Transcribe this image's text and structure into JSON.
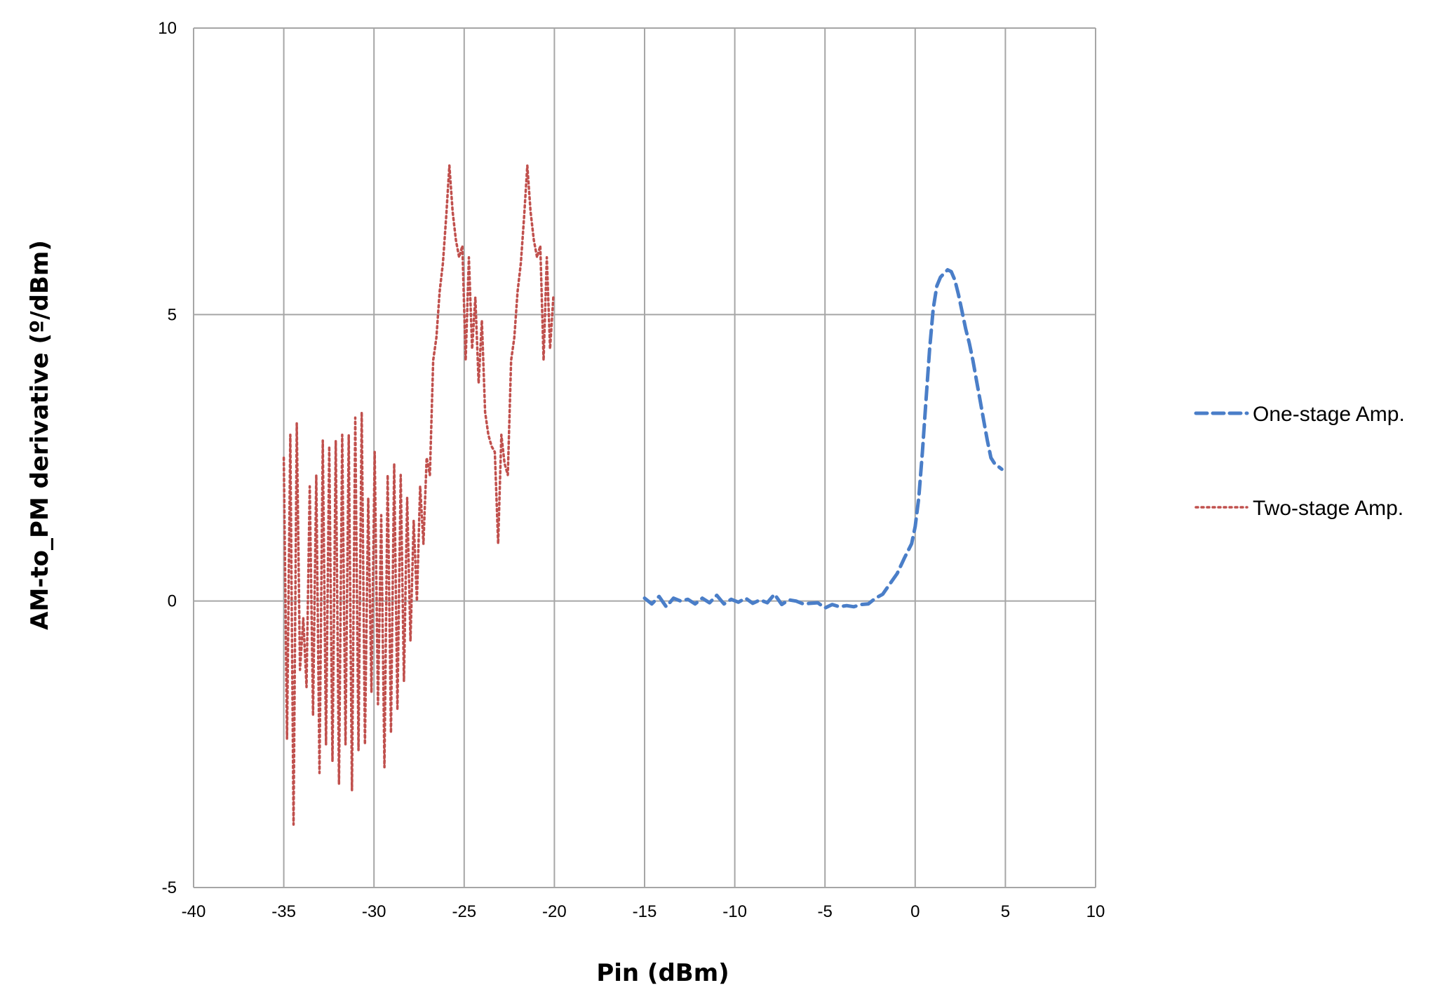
{
  "chart_data": {
    "type": "line",
    "title": "",
    "xlabel": "Pin (dBm)",
    "ylabel": "AM-to_PM derivative (º/dBm)",
    "xlim": [
      -40,
      10
    ],
    "ylim": [
      -5,
      10
    ],
    "x_ticks": [
      "-40",
      "-35",
      "-30",
      "-25",
      "-20",
      "-15",
      "-10",
      "-5",
      "0",
      "5",
      "10"
    ],
    "y_ticks": [
      "10",
      "5",
      "0",
      "-5"
    ],
    "grid": true,
    "legend_position": "right",
    "series": [
      {
        "name": "One-stage Amp.",
        "color": "#4a7ec8",
        "style": "dashed",
        "x": [
          -15.0,
          -14.6,
          -14.2,
          -13.8,
          -13.4,
          -13.0,
          -12.6,
          -12.2,
          -11.8,
          -11.4,
          -11.0,
          -10.6,
          -10.2,
          -9.8,
          -9.4,
          -9.0,
          -8.6,
          -8.2,
          -7.8,
          -7.4,
          -7.0,
          -6.6,
          -6.2,
          -5.8,
          -5.4,
          -5.0,
          -4.6,
          -4.2,
          -3.8,
          -3.4,
          -3.0,
          -2.6,
          -2.2,
          -1.8,
          -1.4,
          -1.0,
          -0.6,
          -0.2,
          0.0,
          0.2,
          0.4,
          0.6,
          0.8,
          1.0,
          1.2,
          1.4,
          1.6,
          1.8,
          2.0,
          2.2,
          2.4,
          2.6,
          2.8,
          3.0,
          3.2,
          3.4,
          3.6,
          3.8,
          4.0,
          4.2,
          4.4,
          4.6,
          4.8
        ],
        "y": [
          0.05,
          -0.05,
          0.08,
          -0.1,
          0.05,
          0.0,
          0.03,
          -0.05,
          0.05,
          -0.03,
          0.1,
          -0.05,
          0.03,
          -0.02,
          0.05,
          -0.04,
          0.02,
          -0.03,
          0.12,
          -0.06,
          0.02,
          0.0,
          -0.05,
          -0.04,
          -0.03,
          -0.12,
          -0.06,
          -0.1,
          -0.08,
          -0.1,
          -0.06,
          -0.05,
          0.05,
          0.12,
          0.3,
          0.48,
          0.75,
          1.0,
          1.3,
          1.8,
          2.6,
          3.5,
          4.4,
          5.1,
          5.5,
          5.65,
          5.72,
          5.78,
          5.75,
          5.6,
          5.35,
          5.05,
          4.75,
          4.5,
          4.2,
          3.85,
          3.5,
          3.15,
          2.8,
          2.5,
          2.4,
          2.35,
          2.3
        ]
      },
      {
        "name": "Two-stage Amp.",
        "color": "#c0504d",
        "style": "dotted",
        "x": [
          -35.0,
          -34.82,
          -34.64,
          -34.46,
          -34.28,
          -34.1,
          -33.92,
          -33.74,
          -33.56,
          -33.38,
          -33.2,
          -33.02,
          -32.84,
          -32.66,
          -32.48,
          -32.3,
          -32.12,
          -31.94,
          -31.76,
          -31.58,
          -31.4,
          -31.22,
          -31.04,
          -30.86,
          -30.68,
          -30.5,
          -30.32,
          -30.14,
          -29.96,
          -29.78,
          -29.6,
          -29.42,
          -29.24,
          -29.06,
          -28.88,
          -28.7,
          -28.52,
          -28.34,
          -28.16,
          -27.98,
          -27.8,
          -27.62,
          -27.44,
          -27.26,
          -27.08,
          -26.9,
          -26.72,
          -26.54,
          -26.36,
          -26.18,
          -26.0,
          -25.82,
          -25.64,
          -25.46,
          -25.28,
          -25.1,
          -24.92,
          -24.74,
          -24.56,
          -24.38,
          -24.2,
          -24.02,
          -23.84,
          -23.66,
          -23.48,
          -23.3,
          -23.12,
          -22.94,
          -22.76,
          -22.58,
          -22.4,
          -22.22,
          -22.04,
          -21.86,
          -21.68,
          -21.5,
          -21.32,
          -21.14,
          -20.96,
          -20.78,
          -20.6,
          -20.42,
          -20.24,
          -20.06
        ],
        "y": [
          2.5,
          -2.4,
          2.9,
          -3.9,
          3.1,
          -1.2,
          -0.3,
          -1.5,
          2.0,
          -2.0,
          2.2,
          -3.0,
          2.8,
          -2.5,
          2.7,
          -2.8,
          2.8,
          -3.2,
          2.9,
          -2.5,
          2.9,
          -3.3,
          3.2,
          -2.6,
          3.3,
          -2.5,
          1.8,
          -1.6,
          2.6,
          -1.8,
          1.5,
          -2.9,
          2.2,
          -2.3,
          2.4,
          -1.9,
          2.2,
          -1.4,
          1.8,
          -0.7,
          1.4,
          0.0,
          2.0,
          1.0,
          2.5,
          2.2,
          4.2,
          4.6,
          5.4,
          5.9,
          6.7,
          7.6,
          6.8,
          6.3,
          6.0,
          6.2,
          4.2,
          6.0,
          4.4,
          5.3,
          3.8,
          4.9,
          3.3,
          2.9,
          2.7,
          2.6,
          1.0,
          2.9,
          2.4,
          2.2,
          4.2,
          4.6,
          5.4,
          5.9,
          6.7,
          7.6,
          6.8,
          6.3,
          6.0,
          6.2,
          4.2,
          6.0,
          4.4,
          5.3
        ]
      }
    ]
  }
}
